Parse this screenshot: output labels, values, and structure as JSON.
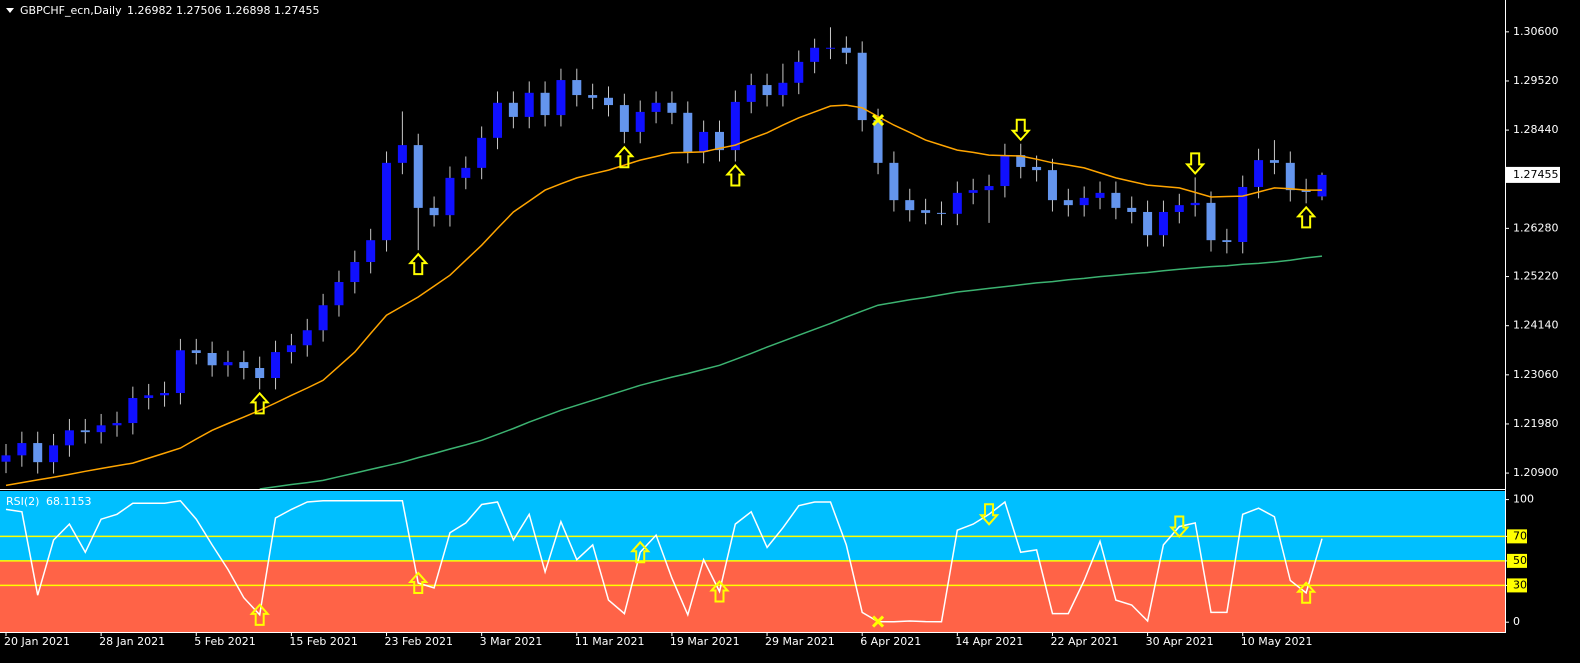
{
  "chart_data": [
    {
      "type": "candlestick",
      "title": "GBPCHF_ecn,Daily",
      "categories": [
        "20 Jan 2021",
        null,
        null,
        null,
        null,
        null,
        "28 Jan 2021",
        null,
        null,
        null,
        null,
        null,
        "5 Feb 2021",
        null,
        null,
        null,
        null,
        null,
        "15 Feb 2021",
        null,
        null,
        null,
        null,
        null,
        "23 Feb 2021",
        null,
        null,
        null,
        null,
        null,
        "3 Mar 2021",
        null,
        null,
        null,
        null,
        null,
        "11 Mar 2021",
        null,
        null,
        null,
        null,
        null,
        "19 Mar 2021",
        null,
        null,
        null,
        null,
        null,
        "29 Mar 2021",
        null,
        null,
        null,
        null,
        null,
        "6 Apr 2021",
        null,
        null,
        null,
        null,
        null,
        "14 Apr 2021",
        null,
        null,
        null,
        null,
        null,
        "22 Apr 2021",
        null,
        null,
        null,
        null,
        null,
        "30 Apr 2021",
        null,
        null,
        null,
        null,
        null,
        "10 May 2021",
        null,
        null,
        null,
        null,
        null
      ],
      "open": [
        1.2115,
        1.2129,
        1.2156,
        1.2114,
        1.2151,
        1.2184,
        1.218,
        1.2195,
        1.22,
        1.2255,
        1.2261,
        1.2266,
        1.236,
        1.2354,
        1.2327,
        1.2334,
        1.2321,
        1.2299,
        1.2356,
        1.2371,
        1.2404,
        1.2459,
        1.251,
        1.2554,
        1.2602,
        1.2772,
        1.2811,
        1.2673,
        1.2657,
        1.2739,
        1.2761,
        1.2827,
        1.2904,
        1.2873,
        1.2926,
        1.2877,
        1.2954,
        1.2921,
        1.2915,
        1.2899,
        1.284,
        1.2884,
        1.2904,
        1.2882,
        1.2796,
        1.284,
        1.28,
        1.2906,
        1.2943,
        1.2921,
        1.2948,
        1.2994,
        1.3025,
        1.3025,
        1.3014,
        1.2866,
        1.2772,
        1.269,
        1.2668,
        1.2662,
        1.266,
        1.2706,
        1.2712,
        1.2721,
        1.2789,
        1.2763,
        1.2756,
        1.269,
        1.2679,
        1.2695,
        1.2706,
        1.2673,
        1.2664,
        1.2613,
        1.2664,
        1.2679,
        1.2684,
        1.2602,
        1.2598,
        1.2719,
        1.2778,
        1.2772,
        1.2712,
        1.26982
      ],
      "high": [
        1.2154,
        1.2181,
        1.2181,
        1.2176,
        1.2209,
        1.2209,
        1.222,
        1.2225,
        1.228,
        1.2286,
        1.2291,
        1.2385,
        1.2385,
        1.2379,
        1.2359,
        1.2359,
        1.2346,
        1.2381,
        1.2396,
        1.2429,
        1.2484,
        1.2535,
        1.2579,
        1.2627,
        1.2797,
        1.2885,
        1.2836,
        1.2698,
        1.2764,
        1.2786,
        1.2852,
        1.2929,
        1.2929,
        1.2951,
        1.2951,
        1.2979,
        1.2979,
        1.2946,
        1.294,
        1.2924,
        1.2909,
        1.2929,
        1.2929,
        1.2907,
        1.2865,
        1.2865,
        1.2931,
        1.2968,
        1.2968,
        1.299,
        1.3019,
        1.3045,
        1.307,
        1.305,
        1.3039,
        1.2891,
        1.2797,
        1.2715,
        1.2693,
        1.2687,
        1.2731,
        1.2737,
        1.2746,
        1.2814,
        1.2814,
        1.2788,
        1.2781,
        1.2715,
        1.272,
        1.2731,
        1.2731,
        1.2698,
        1.2689,
        1.2689,
        1.2704,
        1.274,
        1.2709,
        1.2627,
        1.2744,
        1.2803,
        1.2822,
        1.2797,
        1.2737,
        1.27506
      ],
      "low": [
        1.209,
        1.2104,
        1.2089,
        1.2089,
        1.2126,
        1.2155,
        1.2155,
        1.217,
        1.2175,
        1.223,
        1.2236,
        1.2241,
        1.2329,
        1.2302,
        1.2302,
        1.2296,
        1.2274,
        1.2274,
        1.2331,
        1.2346,
        1.2379,
        1.2434,
        1.2485,
        1.2529,
        1.2577,
        1.2747,
        1.258,
        1.2632,
        1.2632,
        1.2714,
        1.2736,
        1.2802,
        1.2848,
        1.2848,
        1.2852,
        1.2852,
        1.2896,
        1.289,
        1.2874,
        1.2815,
        1.2815,
        1.2859,
        1.2857,
        1.2771,
        1.2771,
        1.2775,
        1.2775,
        1.2881,
        1.2896,
        1.2896,
        1.2923,
        1.2969,
        1.3,
        1.2989,
        1.2841,
        1.2747,
        1.2665,
        1.2643,
        1.2637,
        1.2635,
        1.2635,
        1.2681,
        1.264,
        1.2696,
        1.2738,
        1.2731,
        1.2665,
        1.2654,
        1.2654,
        1.267,
        1.2648,
        1.2639,
        1.2588,
        1.2588,
        1.2639,
        1.2654,
        1.2577,
        1.2573,
        1.2573,
        1.2694,
        1.2747,
        1.2687,
        1.2683,
        1.26898
      ],
      "close": [
        1.2129,
        1.2156,
        1.2114,
        1.2151,
        1.2184,
        1.218,
        1.2195,
        1.22,
        1.2255,
        1.2261,
        1.2266,
        1.236,
        1.2354,
        1.2327,
        1.2334,
        1.2321,
        1.2299,
        1.2356,
        1.2371,
        1.2404,
        1.2459,
        1.251,
        1.2554,
        1.2602,
        1.2772,
        1.2811,
        1.2673,
        1.2657,
        1.2739,
        1.2761,
        1.2827,
        1.2904,
        1.2873,
        1.2926,
        1.2877,
        1.2954,
        1.2921,
        1.2915,
        1.2899,
        1.284,
        1.2884,
        1.2904,
        1.2882,
        1.2796,
        1.284,
        1.28,
        1.2906,
        1.2943,
        1.2921,
        1.2948,
        1.2994,
        1.3025,
        1.3025,
        1.3014,
        1.2866,
        1.2772,
        1.269,
        1.2668,
        1.2662,
        1.266,
        1.2706,
        1.2712,
        1.2721,
        1.2789,
        1.2763,
        1.2756,
        1.269,
        1.2679,
        1.2695,
        1.2706,
        1.2673,
        1.2664,
        1.2613,
        1.2664,
        1.2679,
        1.2684,
        1.2602,
        1.2598,
        1.2719,
        1.2778,
        1.2772,
        1.2712,
        1.2708,
        1.27455
      ],
      "bull_color": "#1010ff",
      "bear_color": "#6495ed",
      "wick_color": "#c8c8c8",
      "series": [
        {
          "color": "#ffa500",
          "values": [
            1.2063,
            1.2069,
            1.2075,
            1.2081,
            1.2087,
            1.2094,
            1.21,
            1.2106,
            1.2112,
            1.2123,
            1.2134,
            1.2145,
            1.2165,
            1.2184,
            1.2199,
            1.2213,
            1.2228,
            1.2244,
            1.2261,
            1.2277,
            1.2294,
            1.2325,
            1.2356,
            1.2397,
            1.2437,
            1.2457,
            1.2477,
            1.2501,
            1.2525,
            1.2558,
            1.2591,
            1.2628,
            1.2664,
            1.2688,
            1.2712,
            1.2726,
            1.2739,
            1.2748,
            1.2756,
            1.2767,
            1.2778,
            1.2786,
            1.2794,
            1.2795,
            1.2796,
            1.2804,
            1.2811,
            1.2825,
            1.2838,
            1.2855,
            1.2871,
            1.2884,
            1.2897,
            1.2899,
            1.2893,
            1.2874,
            1.2855,
            1.2839,
            1.2822,
            1.2811,
            1.28,
            1.2795,
            1.2789,
            1.2788,
            1.2787,
            1.278,
            1.2772,
            1.2767,
            1.2761,
            1.275,
            1.2739,
            1.2731,
            1.2723,
            1.272,
            1.2717,
            1.2707,
            1.2697,
            1.2698,
            1.2699,
            1.2708,
            1.2717,
            1.2715,
            1.2712,
            1.2712
          ]
        },
        {
          "color": "#3cb371",
          "values": [
            null,
            null,
            null,
            null,
            null,
            null,
            null,
            null,
            null,
            null,
            null,
            null,
            null,
            null,
            null,
            null,
            1.2055,
            1.206,
            1.2065,
            1.2069,
            1.2074,
            1.2082,
            1.209,
            1.2098,
            1.2106,
            1.2114,
            1.2124,
            1.2133,
            1.2143,
            1.2152,
            1.2162,
            1.2175,
            1.2188,
            1.2202,
            1.2215,
            1.2228,
            1.2239,
            1.225,
            1.2261,
            1.2272,
            1.2283,
            1.2292,
            1.2301,
            1.2309,
            1.2318,
            1.2327,
            1.234,
            1.2353,
            1.2367,
            1.238,
            1.2393,
            1.2406,
            1.2419,
            1.2433,
            1.2446,
            1.2459,
            1.2465,
            1.2471,
            1.2476,
            1.2482,
            1.2488,
            1.2492,
            1.2496,
            1.25,
            1.2504,
            1.2508,
            1.2511,
            1.2515,
            1.2518,
            1.2522,
            1.2525,
            1.2528,
            1.2531,
            1.2535,
            1.2538,
            1.2541,
            1.2544,
            1.2546,
            1.2549,
            1.2551,
            1.2554,
            1.2558,
            1.2563,
            1.2567
          ]
        }
      ],
      "signals": [
        {
          "index": 16,
          "kind": "up"
        },
        {
          "index": 26,
          "kind": "up"
        },
        {
          "index": 39,
          "kind": "up"
        },
        {
          "index": 46,
          "kind": "up"
        },
        {
          "index": 55,
          "kind": "cross"
        },
        {
          "index": 64,
          "kind": "down"
        },
        {
          "index": 75,
          "kind": "down"
        },
        {
          "index": 82,
          "kind": "up"
        }
      ],
      "signal_color": "#ffff00",
      "ylim": [
        1.2055,
        1.313
      ],
      "yticks": [
        {
          "value": 1.306,
          "label": "1.30600"
        },
        {
          "value": 1.2952,
          "label": "1.29520"
        },
        {
          "value": 1.2844,
          "label": "1.28440"
        },
        {
          "value": 1.2628,
          "label": "1.26280"
        },
        {
          "value": 1.2522,
          "label": "1.25220"
        },
        {
          "value": 1.2414,
          "label": "1.24140"
        },
        {
          "value": 1.2306,
          "label": "1.23060"
        },
        {
          "value": 1.2198,
          "label": "1.21980"
        },
        {
          "value": 1.209,
          "label": "1.20900"
        }
      ],
      "grid": false
    },
    {
      "type": "line",
      "title": "RSI(2)",
      "color": "#ffffff",
      "values": [
        92,
        90,
        22,
        67,
        80,
        57,
        84,
        88,
        97,
        97,
        97,
        99,
        84,
        63,
        43,
        20,
        6,
        85,
        92,
        98,
        99,
        99,
        99,
        99,
        99,
        99,
        32,
        28,
        73,
        81,
        96,
        98,
        67,
        88,
        41,
        82,
        51,
        63,
        18,
        7,
        57,
        71,
        36,
        6,
        51,
        25,
        80,
        90,
        61,
        77,
        95,
        98,
        98,
        63,
        8,
        0.5,
        0.3,
        1,
        0.5,
        0.3,
        75,
        80,
        88,
        98,
        57,
        59,
        7,
        7,
        34,
        66,
        18,
        14,
        1,
        63,
        78,
        81,
        8,
        8,
        88,
        93,
        86,
        34,
        24,
        68.1153
      ],
      "levels": [
        70,
        50,
        30
      ],
      "level_color": "#ffff00",
      "split": 50,
      "fill_above": "#00bfff",
      "fill_below": "#ff6347",
      "signals": [
        {
          "index": 16,
          "kind": "up"
        },
        {
          "index": 26,
          "kind": "up"
        },
        {
          "index": 40,
          "kind": "up"
        },
        {
          "index": 45,
          "kind": "up"
        },
        {
          "index": 55,
          "kind": "cross"
        },
        {
          "index": 62,
          "kind": "down"
        },
        {
          "index": 74,
          "kind": "down"
        },
        {
          "index": 82,
          "kind": "up"
        }
      ],
      "signal_color": "#ffff00",
      "ylim": [
        -8,
        107
      ],
      "yticks": [
        100,
        70,
        50,
        30,
        0
      ]
    }
  ]
}
